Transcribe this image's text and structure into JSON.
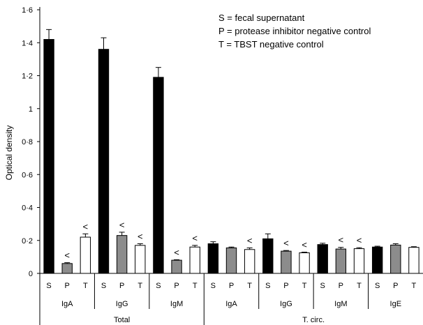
{
  "chart_data": {
    "type": "bar",
    "ylabel": "Optical density",
    "ylim": [
      0,
      1.6
    ],
    "yticks": [
      "0",
      "0·2",
      "0·4",
      "0·6",
      "0·8",
      "1",
      "1·2",
      "1·4",
      "1·6"
    ],
    "grid": false,
    "legend_position": "top-right",
    "legend": [
      "S = fecal supernatant",
      "P = protease inhibitor negative control",
      "T = TBST negative control"
    ],
    "bar_colors": {
      "S": "#000000",
      "P": "#8c8c8c",
      "T": "#ffffff"
    },
    "groups": [
      {
        "label": "Total",
        "subgroups": [
          {
            "label": "IgA",
            "bars": [
              {
                "cat": "S",
                "value": 1.42,
                "err": 0.06,
                "annotation": ""
              },
              {
                "cat": "P",
                "value": 0.06,
                "err": 0.005,
                "annotation": "<"
              },
              {
                "cat": "T",
                "value": 0.22,
                "err": 0.02,
                "annotation": "<"
              }
            ]
          },
          {
            "label": "IgG",
            "bars": [
              {
                "cat": "S",
                "value": 1.36,
                "err": 0.07,
                "annotation": ""
              },
              {
                "cat": "P",
                "value": 0.23,
                "err": 0.02,
                "annotation": "<"
              },
              {
                "cat": "T",
                "value": 0.17,
                "err": 0.01,
                "annotation": "<"
              }
            ]
          },
          {
            "label": "IgM",
            "bars": [
              {
                "cat": "S",
                "value": 1.19,
                "err": 0.06,
                "annotation": ""
              },
              {
                "cat": "P",
                "value": 0.08,
                "err": 0.003,
                "annotation": "<"
              },
              {
                "cat": "T",
                "value": 0.16,
                "err": 0.01,
                "annotation": "<"
              }
            ]
          }
        ]
      },
      {
        "label": "T. circ.",
        "subgroups": [
          {
            "label": "IgA",
            "bars": [
              {
                "cat": "S",
                "value": 0.18,
                "err": 0.012,
                "annotation": ""
              },
              {
                "cat": "P",
                "value": 0.155,
                "err": 0.005,
                "annotation": ""
              },
              {
                "cat": "T",
                "value": 0.145,
                "err": 0.01,
                "annotation": "<"
              }
            ]
          },
          {
            "label": "IgG",
            "bars": [
              {
                "cat": "S",
                "value": 0.21,
                "err": 0.03,
                "annotation": ""
              },
              {
                "cat": "P",
                "value": 0.135,
                "err": 0.004,
                "annotation": "<"
              },
              {
                "cat": "T",
                "value": 0.125,
                "err": 0.004,
                "annotation": "<"
              }
            ]
          },
          {
            "label": "IgM",
            "bars": [
              {
                "cat": "S",
                "value": 0.175,
                "err": 0.008,
                "annotation": ""
              },
              {
                "cat": "P",
                "value": 0.148,
                "err": 0.01,
                "annotation": "<"
              },
              {
                "cat": "T",
                "value": 0.15,
                "err": 0.006,
                "annotation": "<"
              }
            ]
          },
          {
            "label": "IgE",
            "bars": [
              {
                "cat": "S",
                "value": 0.16,
                "err": 0.005,
                "annotation": ""
              },
              {
                "cat": "P",
                "value": 0.172,
                "err": 0.008,
                "annotation": ""
              },
              {
                "cat": "T",
                "value": 0.158,
                "err": 0.004,
                "annotation": ""
              }
            ]
          }
        ]
      }
    ]
  }
}
